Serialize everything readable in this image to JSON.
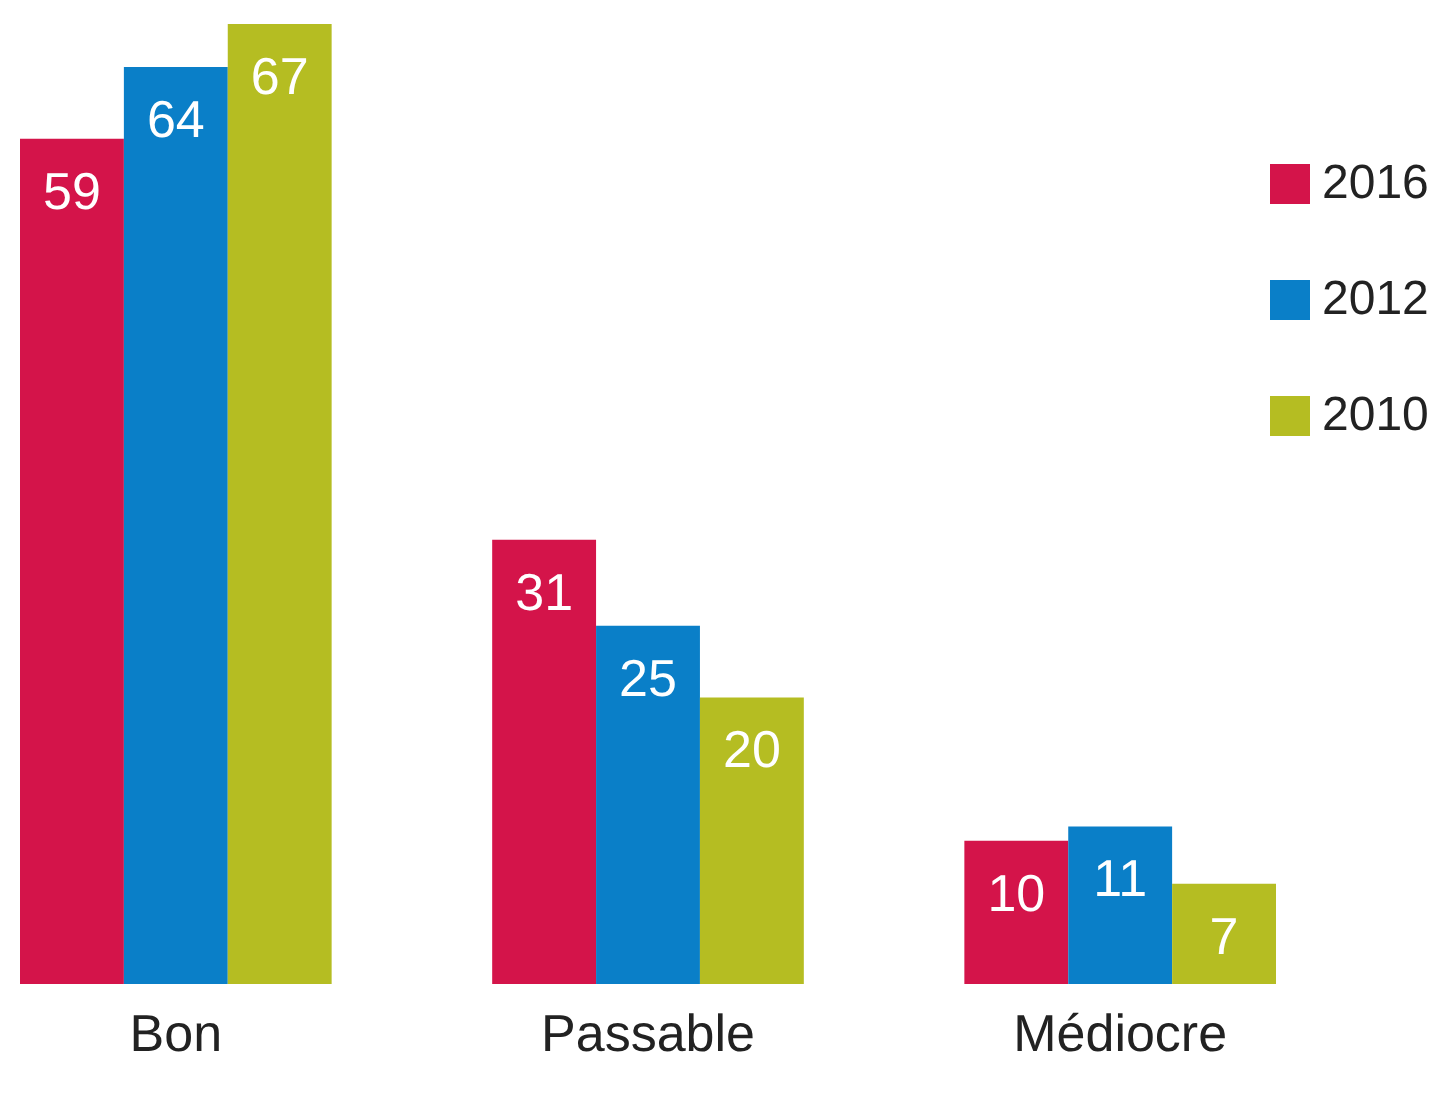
{
  "chart_data": {
    "type": "bar",
    "categories": [
      "Bon",
      "Passable",
      "Médiocre"
    ],
    "series": [
      {
        "name": "2016",
        "color": "#d4144a",
        "values": [
          59,
          31,
          10
        ]
      },
      {
        "name": "2012",
        "color": "#0a7fc8",
        "values": [
          64,
          25,
          11
        ]
      },
      {
        "name": "2010",
        "color": "#b5bd22",
        "values": [
          67,
          20,
          7
        ]
      }
    ],
    "data_labels": true,
    "legend": "top right"
  }
}
